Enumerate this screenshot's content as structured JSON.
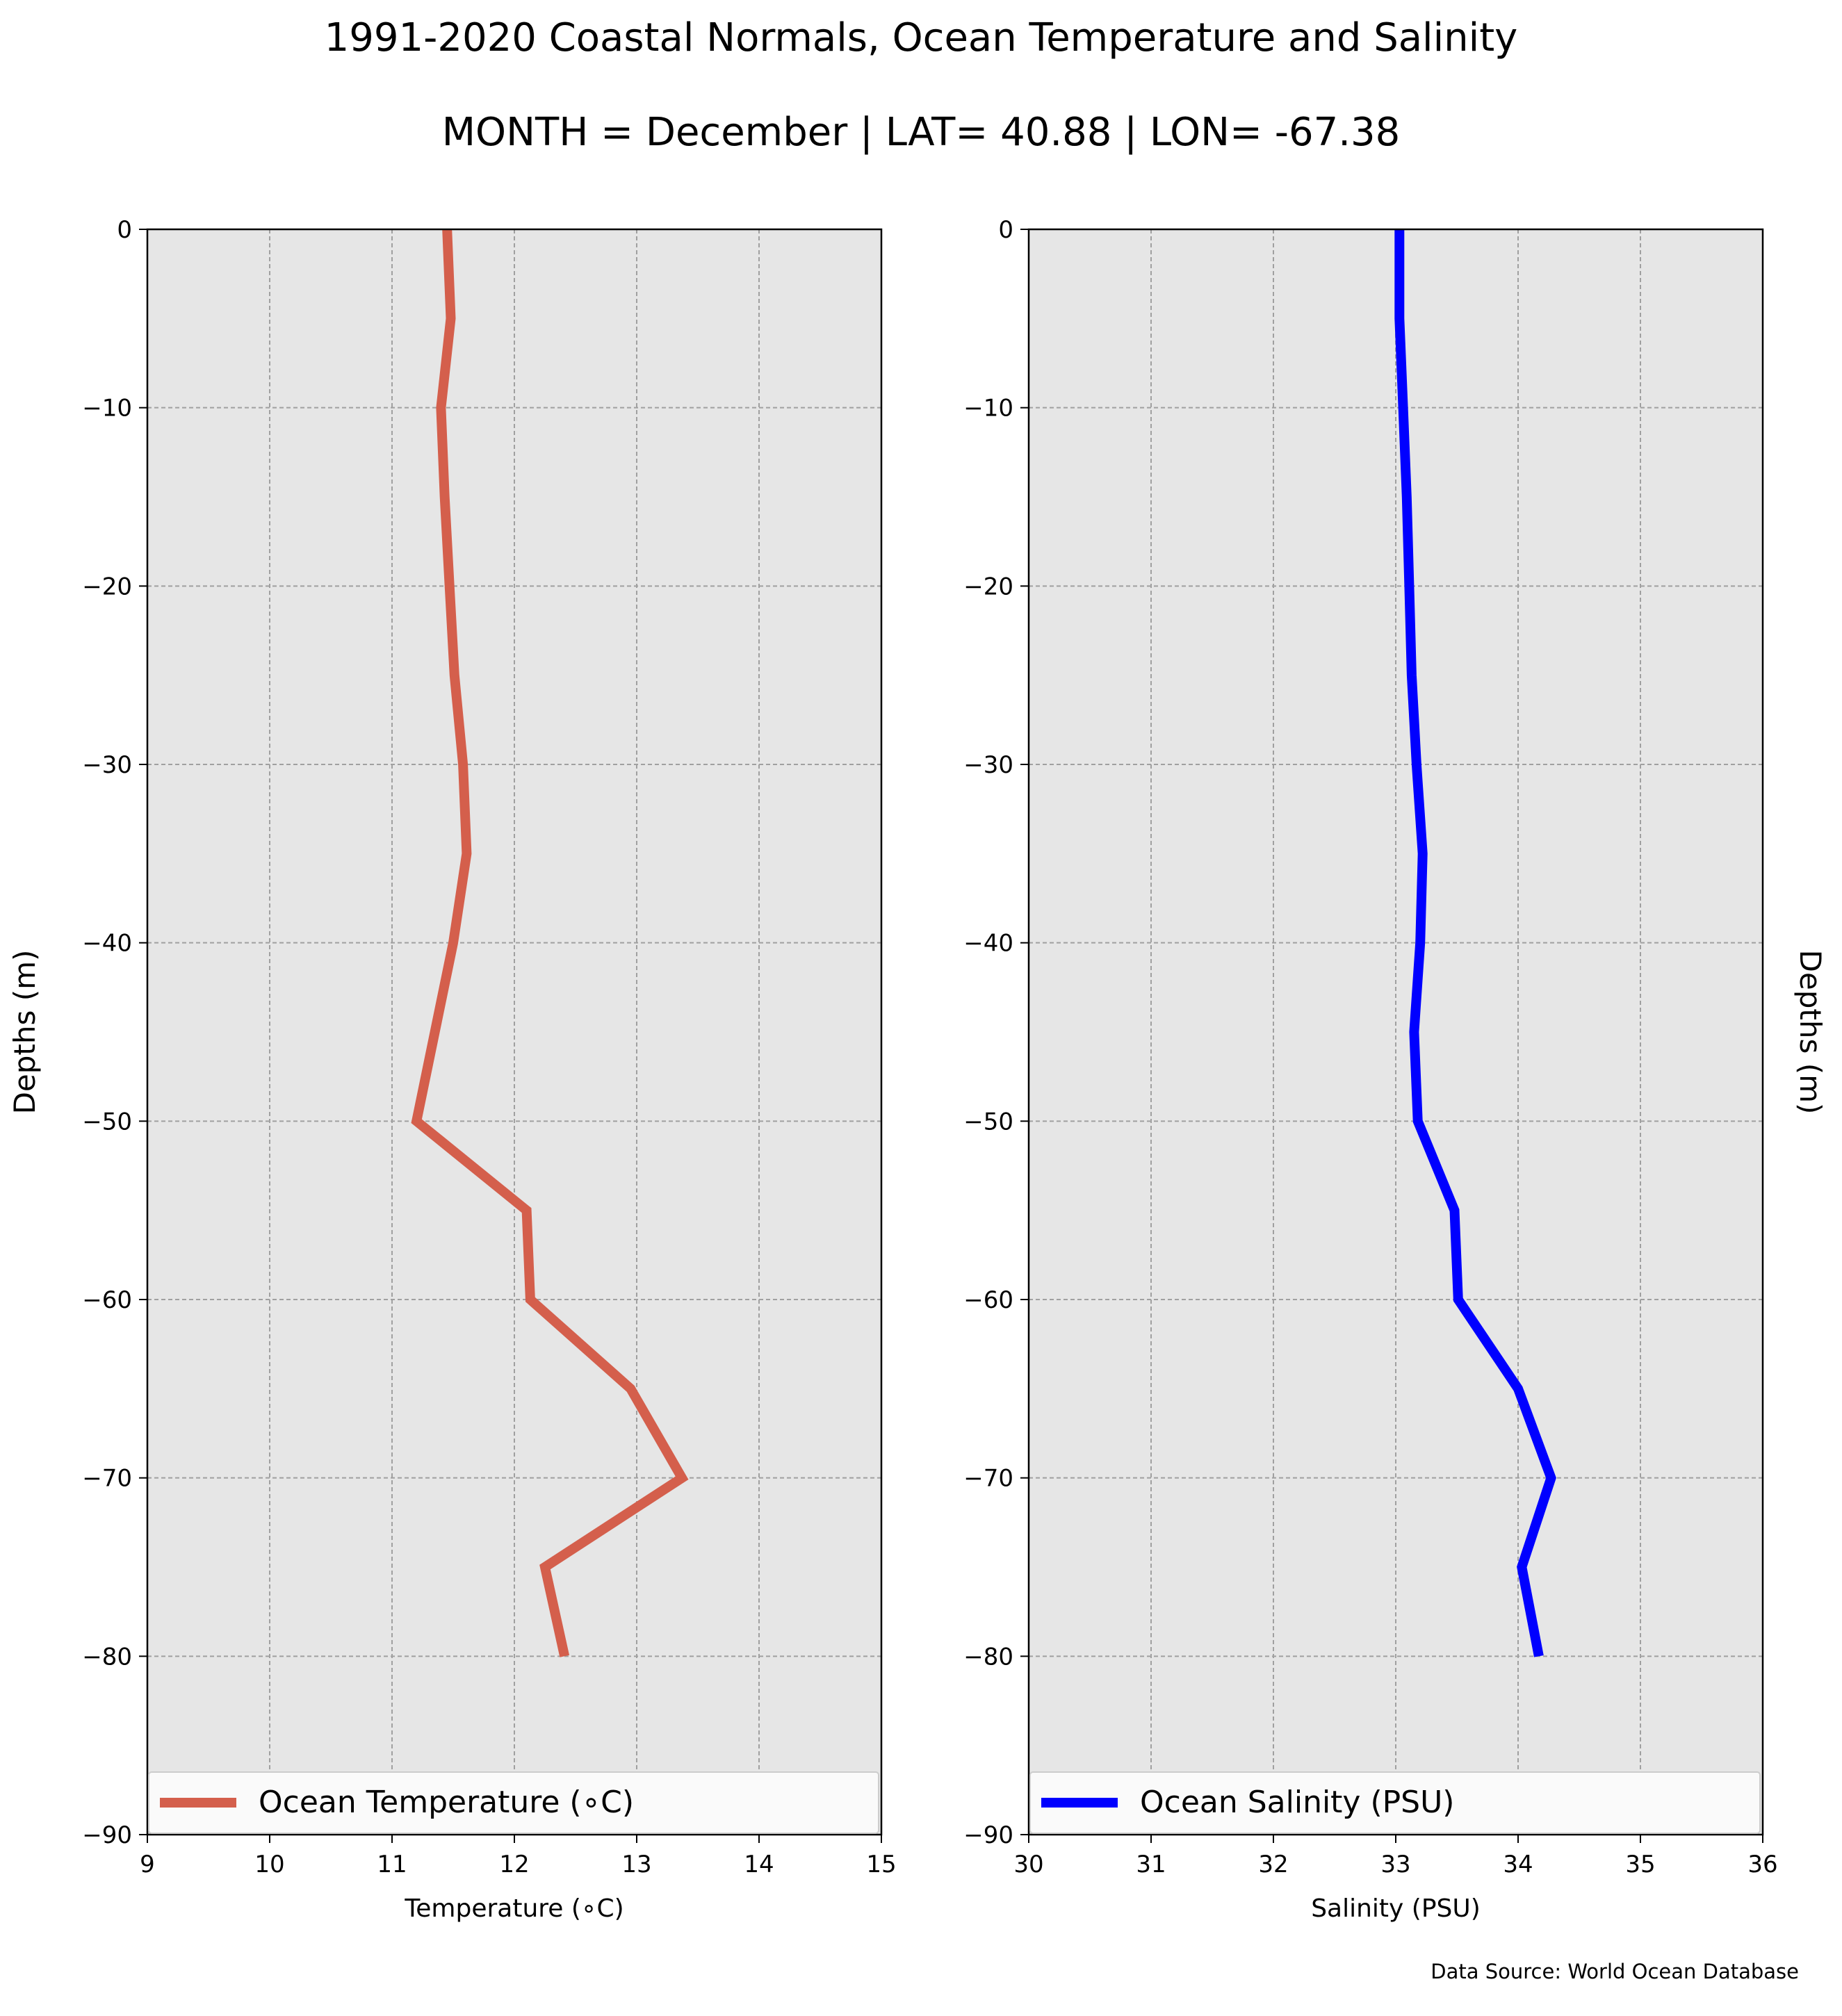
{
  "title": "1991-2020 Coastal Normals, Ocean Temperature and Salinity",
  "subtitle": "MONTH = December | LAT= 40.88 | LON= -67.38",
  "source": "Data Source: World Ocean Database",
  "chart_data": [
    {
      "type": "line",
      "xlabel": "Temperature (∘C)",
      "ylabel": "Depths (m)",
      "xlim": [
        9,
        15
      ],
      "ylim": [
        -90,
        0
      ],
      "xticks": [
        "9",
        "10",
        "11",
        "12",
        "13",
        "14",
        "15"
      ],
      "yticks": [
        "0",
        "−10",
        "−20",
        "−30",
        "−40",
        "−50",
        "−60",
        "−70",
        "−80",
        "−90"
      ],
      "grid": true,
      "legend_position": "bottom",
      "color": "#d45f4c",
      "series": [
        {
          "name": "Ocean Temperature (∘C)",
          "x": [
            11.45,
            11.48,
            11.4,
            11.43,
            11.47,
            11.51,
            11.58,
            11.61,
            11.5,
            11.35,
            11.2,
            12.1,
            12.13,
            12.95,
            13.37,
            12.25,
            12.41
          ],
          "y": [
            0,
            -5,
            -10,
            -15,
            -20,
            -25,
            -30,
            -35,
            -40,
            -45,
            -50,
            -55,
            -60,
            -65,
            -70,
            -75,
            -80
          ]
        }
      ]
    },
    {
      "type": "line",
      "xlabel": "Salinity (PSU)",
      "ylabel": "Depths (m)",
      "xlim": [
        30,
        36
      ],
      "ylim": [
        -90,
        0
      ],
      "xticks": [
        "30",
        "31",
        "32",
        "33",
        "34",
        "35",
        "36"
      ],
      "yticks": [
        "0",
        "−10",
        "−20",
        "−30",
        "−40",
        "−50",
        "−60",
        "−70",
        "−80",
        "−90"
      ],
      "grid": true,
      "legend_position": "bottom",
      "color": "#0000ff",
      "series": [
        {
          "name": "Ocean Salinity (PSU)",
          "x": [
            33.03,
            33.03,
            33.06,
            33.09,
            33.11,
            33.13,
            33.17,
            33.22,
            33.2,
            33.15,
            33.18,
            33.48,
            33.51,
            34.0,
            34.27,
            34.03,
            34.17
          ],
          "y": [
            0,
            -5,
            -10,
            -15,
            -20,
            -25,
            -30,
            -35,
            -40,
            -45,
            -50,
            -55,
            -60,
            -65,
            -70,
            -75,
            -80
          ]
        }
      ]
    }
  ]
}
